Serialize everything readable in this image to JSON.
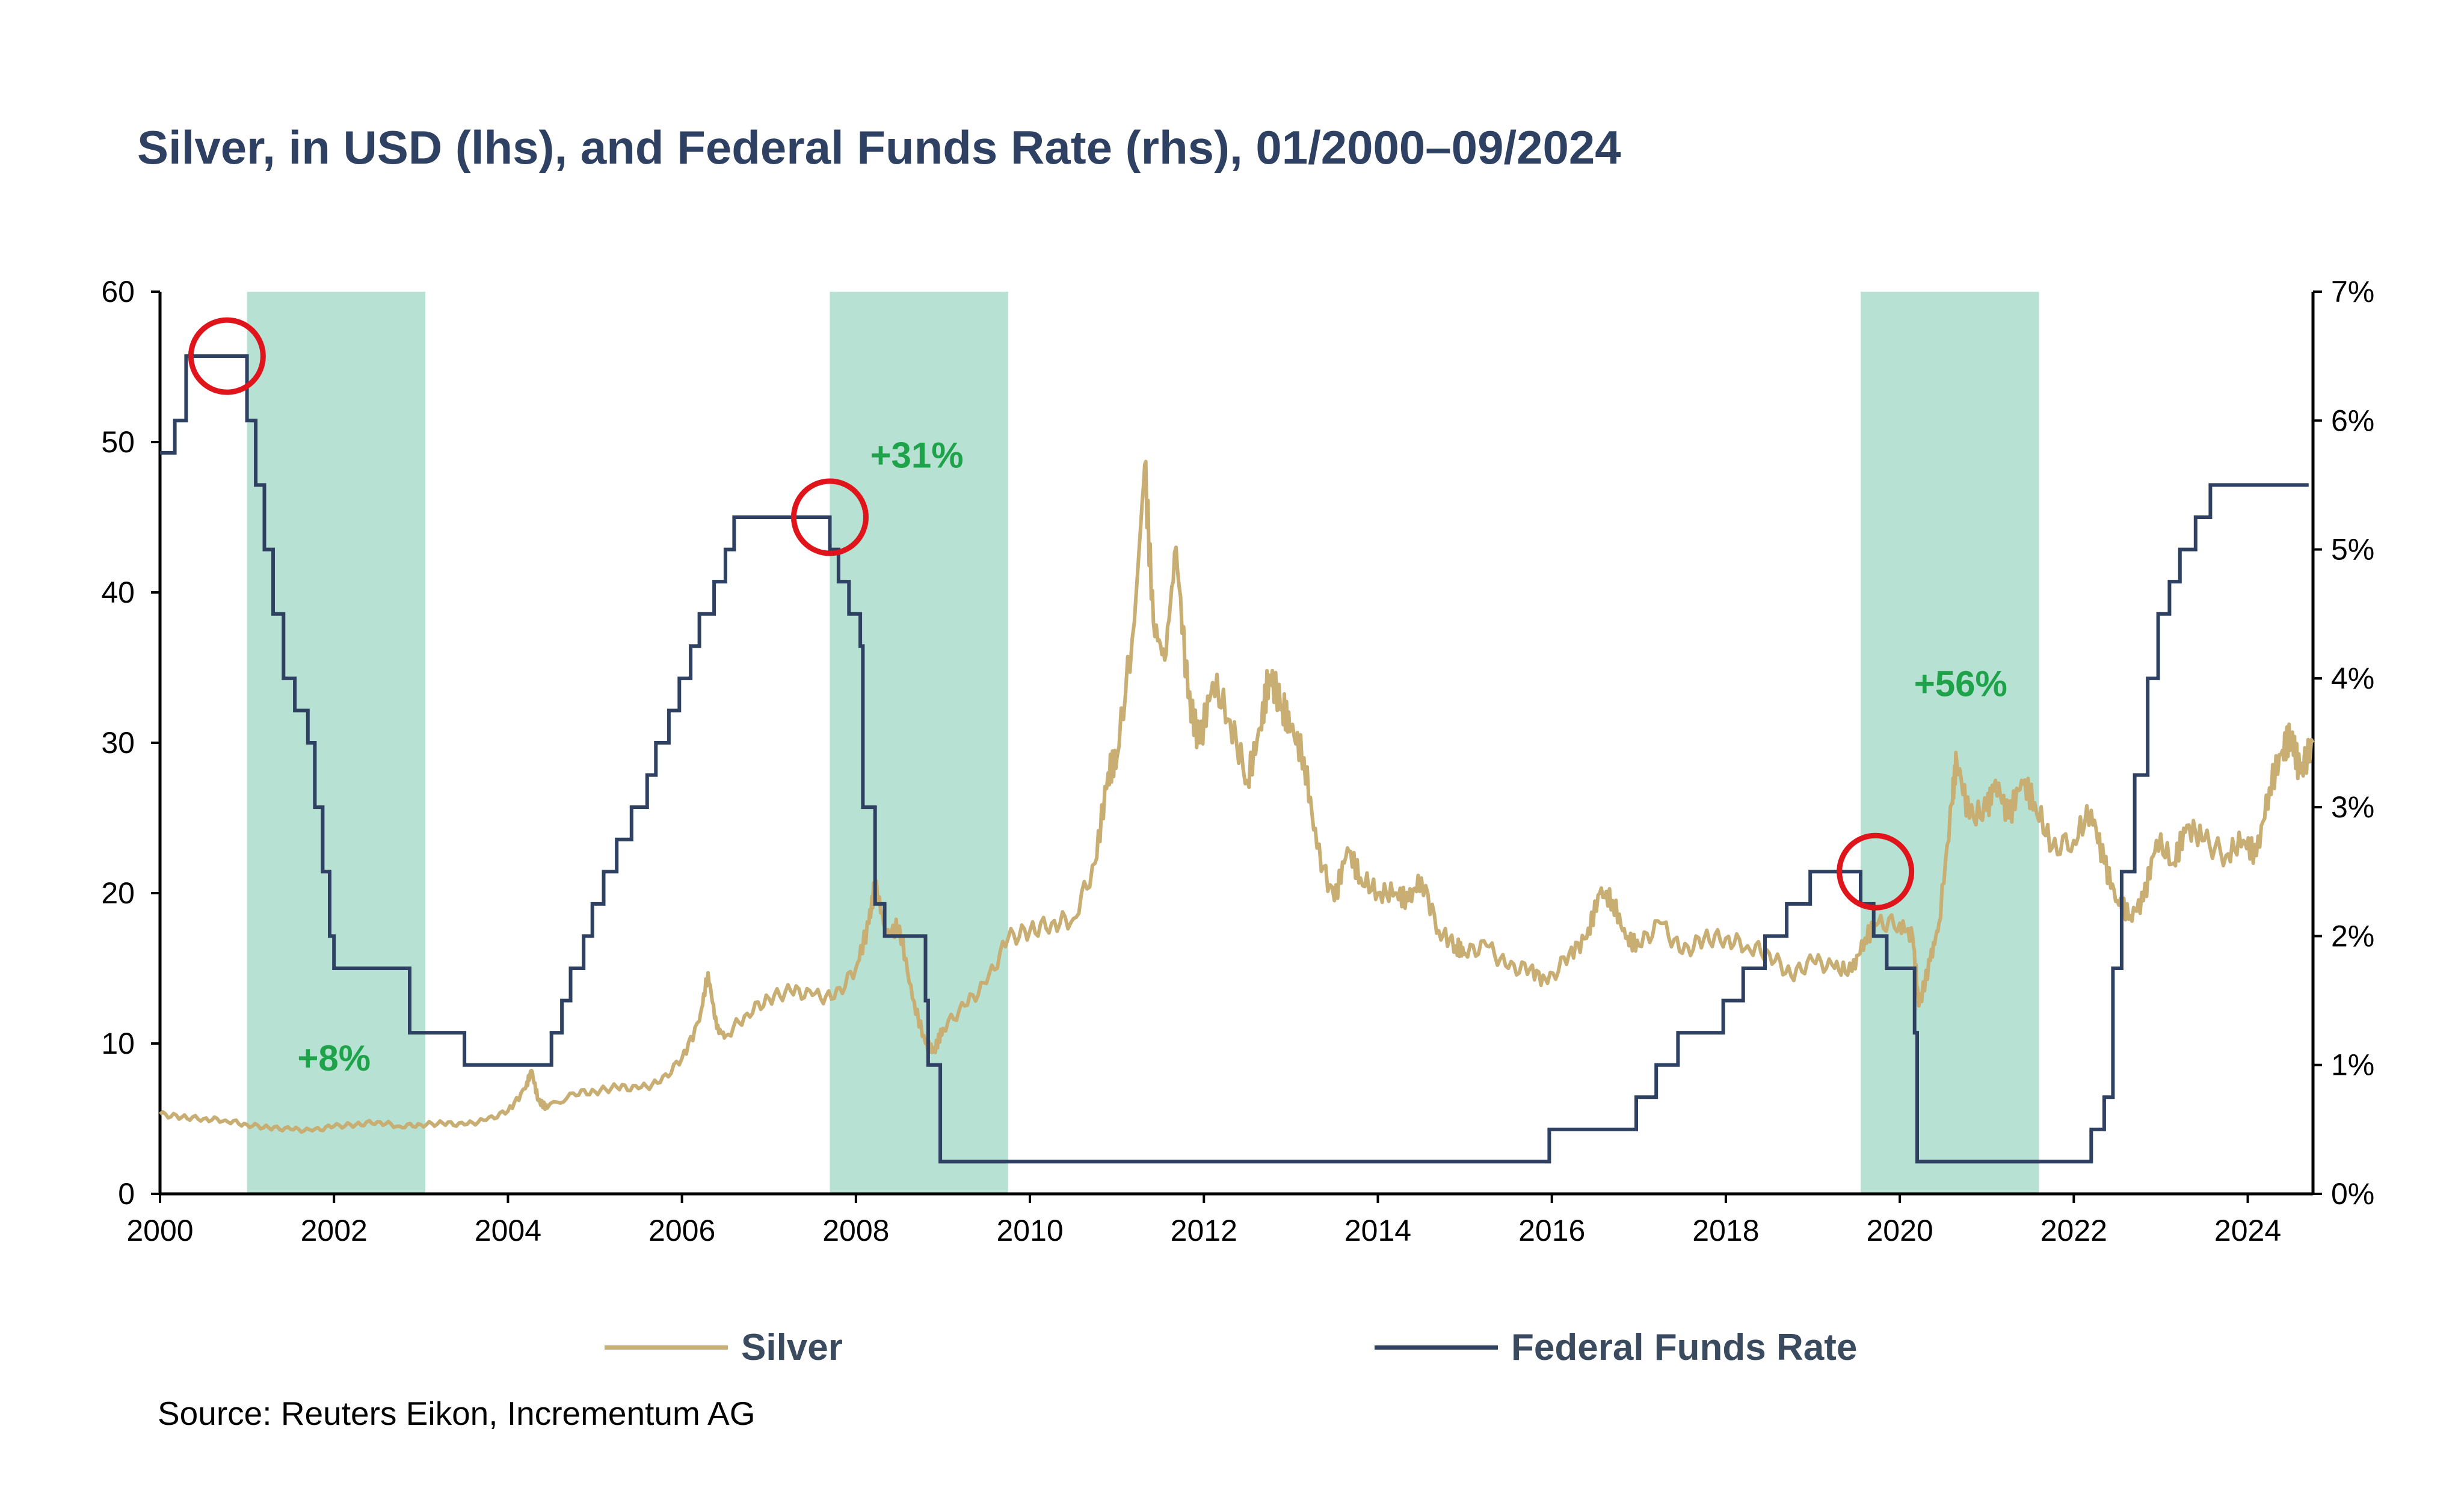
{
  "chart_data": {
    "type": "line",
    "title": "Silver, in USD (lhs), and Federal Funds Rate (rhs), 01/2000–09/2024",
    "xlabel": "",
    "ylabel_left": "",
    "ylabel_right": "",
    "xlim": [
      2000,
      2024.75
    ],
    "ylim_left": [
      0,
      60
    ],
    "ylim_right": [
      0,
      7
    ],
    "x_ticks": [
      "2000",
      "2002",
      "2004",
      "2006",
      "2008",
      "2010",
      "2012",
      "2014",
      "2016",
      "2018",
      "2020",
      "2022",
      "2024"
    ],
    "y_left_ticks": [
      "0",
      "10",
      "20",
      "30",
      "40",
      "50",
      "60"
    ],
    "y_right_ticks": [
      "0%",
      "1%",
      "2%",
      "3%",
      "4%",
      "5%",
      "6%",
      "7%"
    ],
    "grid": false,
    "legend_position": "bottom",
    "colors": {
      "silver": "#c8ae72",
      "fed_funds": "#2e4163",
      "shading": "#b7e1d3",
      "circle": "#e0141b",
      "annotation": "#1fa34a",
      "title": "#2e4163"
    },
    "series": [
      {
        "name": "Silver",
        "axis": "left",
        "points": [
          [
            2000.0,
            5.3
          ],
          [
            2000.25,
            5.1
          ],
          [
            2000.5,
            5.0
          ],
          [
            2000.75,
            4.9
          ],
          [
            2001.0,
            4.6
          ],
          [
            2001.25,
            4.4
          ],
          [
            2001.5,
            4.3
          ],
          [
            2001.75,
            4.2
          ],
          [
            2002.0,
            4.5
          ],
          [
            2002.25,
            4.6
          ],
          [
            2002.5,
            4.8
          ],
          [
            2002.75,
            4.5
          ],
          [
            2003.0,
            4.6
          ],
          [
            2003.25,
            4.7
          ],
          [
            2003.5,
            4.6
          ],
          [
            2003.75,
            4.9
          ],
          [
            2004.0,
            5.5
          ],
          [
            2004.2,
            7.0
          ],
          [
            2004.27,
            8.2
          ],
          [
            2004.35,
            6.2
          ],
          [
            2004.45,
            5.7
          ],
          [
            2004.75,
            6.7
          ],
          [
            2005.0,
            6.8
          ],
          [
            2005.25,
            7.1
          ],
          [
            2005.5,
            7.0
          ],
          [
            2005.75,
            7.4
          ],
          [
            2006.0,
            9.0
          ],
          [
            2006.2,
            11.5
          ],
          [
            2006.3,
            14.7
          ],
          [
            2006.4,
            11.0
          ],
          [
            2006.5,
            10.5
          ],
          [
            2006.75,
            12.0
          ],
          [
            2007.0,
            13.0
          ],
          [
            2007.25,
            13.5
          ],
          [
            2007.5,
            13.2
          ],
          [
            2007.75,
            13.0
          ],
          [
            2008.0,
            15.0
          ],
          [
            2008.15,
            18.0
          ],
          [
            2008.22,
            20.7
          ],
          [
            2008.35,
            17.2
          ],
          [
            2008.5,
            17.8
          ],
          [
            2008.65,
            13.0
          ],
          [
            2008.8,
            10.0
          ],
          [
            2008.9,
            9.5
          ],
          [
            2009.0,
            11.0
          ],
          [
            2009.25,
            12.5
          ],
          [
            2009.5,
            14.0
          ],
          [
            2009.75,
            17.0
          ],
          [
            2010.0,
            17.5
          ],
          [
            2010.25,
            18.0
          ],
          [
            2010.5,
            18.3
          ],
          [
            2010.75,
            22.0
          ],
          [
            2010.9,
            28.0
          ],
          [
            2011.0,
            29.0
          ],
          [
            2011.2,
            38.0
          ],
          [
            2011.32,
            48.5
          ],
          [
            2011.42,
            38.0
          ],
          [
            2011.55,
            35.5
          ],
          [
            2011.68,
            43.0
          ],
          [
            2011.82,
            33.0
          ],
          [
            2011.95,
            30.0
          ],
          [
            2012.1,
            34.0
          ],
          [
            2012.3,
            31.5
          ],
          [
            2012.5,
            27.5
          ],
          [
            2012.65,
            31.0
          ],
          [
            2012.75,
            34.5
          ],
          [
            2012.9,
            32.5
          ],
          [
            2013.0,
            31.0
          ],
          [
            2013.15,
            29.0
          ],
          [
            2013.3,
            23.0
          ],
          [
            2013.5,
            19.5
          ],
          [
            2013.65,
            23.0
          ],
          [
            2013.8,
            21.0
          ],
          [
            2014.0,
            20.0
          ],
          [
            2014.2,
            20.0
          ],
          [
            2014.35,
            19.5
          ],
          [
            2014.5,
            21.0
          ],
          [
            2014.7,
            17.5
          ],
          [
            2014.9,
            16.5
          ],
          [
            2015.0,
            16.0
          ],
          [
            2015.25,
            16.5
          ],
          [
            2015.5,
            15.0
          ],
          [
            2015.75,
            15.0
          ],
          [
            2015.95,
            14.0
          ],
          [
            2016.2,
            16.0
          ],
          [
            2016.4,
            17.0
          ],
          [
            2016.55,
            20.0
          ],
          [
            2016.7,
            19.5
          ],
          [
            2016.85,
            17.0
          ],
          [
            2017.0,
            16.5
          ],
          [
            2017.25,
            18.0
          ],
          [
            2017.5,
            16.0
          ],
          [
            2017.75,
            17.0
          ],
          [
            2018.0,
            17.0
          ],
          [
            2018.25,
            16.5
          ],
          [
            2018.5,
            16.0
          ],
          [
            2018.75,
            14.5
          ],
          [
            2019.0,
            15.5
          ],
          [
            2019.25,
            15.0
          ],
          [
            2019.45,
            14.8
          ],
          [
            2019.6,
            17.0
          ],
          [
            2019.75,
            18.0
          ],
          [
            2020.0,
            18.0
          ],
          [
            2020.15,
            17.0
          ],
          [
            2020.22,
            12.5
          ],
          [
            2020.35,
            15.5
          ],
          [
            2020.45,
            18.0
          ],
          [
            2020.6,
            26.0
          ],
          [
            2020.65,
            29.0
          ],
          [
            2020.8,
            25.0
          ],
          [
            2021.0,
            25.5
          ],
          [
            2021.1,
            27.5
          ],
          [
            2021.25,
            25.0
          ],
          [
            2021.4,
            27.5
          ],
          [
            2021.55,
            26.0
          ],
          [
            2021.75,
            23.0
          ],
          [
            2022.0,
            23.5
          ],
          [
            2022.2,
            25.5
          ],
          [
            2022.35,
            22.0
          ],
          [
            2022.5,
            19.5
          ],
          [
            2022.65,
            18.5
          ],
          [
            2022.8,
            19.5
          ],
          [
            2022.95,
            23.5
          ],
          [
            2023.15,
            22.0
          ],
          [
            2023.3,
            24.5
          ],
          [
            2023.5,
            23.5
          ],
          [
            2023.75,
            22.5
          ],
          [
            2023.95,
            23.5
          ],
          [
            2024.1,
            22.5
          ],
          [
            2024.25,
            27.0
          ],
          [
            2024.4,
            29.5
          ],
          [
            2024.5,
            30.5
          ],
          [
            2024.6,
            28.0
          ],
          [
            2024.75,
            30.0
          ]
        ]
      },
      {
        "name": "Federal Funds Rate",
        "axis": "right",
        "points": [
          [
            2000.0,
            5.75
          ],
          [
            2000.17,
            6.0
          ],
          [
            2000.3,
            6.5
          ],
          [
            2001.0,
            6.0
          ],
          [
            2001.1,
            5.5
          ],
          [
            2001.2,
            5.0
          ],
          [
            2001.3,
            4.5
          ],
          [
            2001.42,
            4.0
          ],
          [
            2001.55,
            3.75
          ],
          [
            2001.7,
            3.5
          ],
          [
            2001.78,
            3.0
          ],
          [
            2001.87,
            2.5
          ],
          [
            2001.95,
            2.0
          ],
          [
            2002.0,
            1.75
          ],
          [
            2002.87,
            1.25
          ],
          [
            2003.5,
            1.0
          ],
          [
            2004.5,
            1.25
          ],
          [
            2004.62,
            1.5
          ],
          [
            2004.72,
            1.75
          ],
          [
            2004.87,
            2.0
          ],
          [
            2004.97,
            2.25
          ],
          [
            2005.1,
            2.5
          ],
          [
            2005.25,
            2.75
          ],
          [
            2005.42,
            3.0
          ],
          [
            2005.6,
            3.25
          ],
          [
            2005.7,
            3.5
          ],
          [
            2005.85,
            3.75
          ],
          [
            2005.97,
            4.0
          ],
          [
            2006.1,
            4.25
          ],
          [
            2006.2,
            4.5
          ],
          [
            2006.37,
            4.75
          ],
          [
            2006.5,
            5.0
          ],
          [
            2006.6,
            5.25
          ],
          [
            2007.7,
            5.0
          ],
          [
            2007.8,
            4.75
          ],
          [
            2007.92,
            4.5
          ],
          [
            2008.05,
            4.25
          ],
          [
            2008.08,
            3.0
          ],
          [
            2008.22,
            2.25
          ],
          [
            2008.33,
            2.0
          ],
          [
            2008.8,
            1.5
          ],
          [
            2008.83,
            1.0
          ],
          [
            2008.97,
            0.25
          ],
          [
            2015.97,
            0.5
          ],
          [
            2016.97,
            0.75
          ],
          [
            2017.2,
            1.0
          ],
          [
            2017.45,
            1.25
          ],
          [
            2017.97,
            1.5
          ],
          [
            2018.2,
            1.75
          ],
          [
            2018.45,
            2.0
          ],
          [
            2018.7,
            2.25
          ],
          [
            2018.97,
            2.5
          ],
          [
            2019.55,
            2.25
          ],
          [
            2019.7,
            2.0
          ],
          [
            2019.85,
            1.75
          ],
          [
            2020.17,
            1.25
          ],
          [
            2020.2,
            0.25
          ],
          [
            2022.2,
            0.5
          ],
          [
            2022.35,
            0.75
          ],
          [
            2022.45,
            1.75
          ],
          [
            2022.55,
            2.5
          ],
          [
            2022.7,
            3.25
          ],
          [
            2022.85,
            4.0
          ],
          [
            2022.97,
            4.5
          ],
          [
            2023.1,
            4.75
          ],
          [
            2023.22,
            5.0
          ],
          [
            2023.4,
            5.25
          ],
          [
            2023.57,
            5.5
          ],
          [
            2024.7,
            5.5
          ]
        ]
      }
    ],
    "shaded_periods": [
      [
        2001.0,
        2003.05
      ],
      [
        2007.7,
        2009.75
      ],
      [
        2019.55,
        2021.6
      ]
    ],
    "circles": [
      {
        "x": 2000.77,
        "y_right": 6.5
      },
      {
        "x": 2007.7,
        "y_right": 5.25
      },
      {
        "x": 2019.72,
        "y_right": 2.5
      }
    ],
    "annotations": [
      {
        "text": "+8%",
        "x": 2002.0,
        "y_left": 8.2
      },
      {
        "text": "+31%",
        "x": 2008.7,
        "y_left": 48.3
      },
      {
        "text": "+56%",
        "x": 2020.7,
        "y_left": 33.1
      }
    ]
  },
  "legend": {
    "silver_label": "Silver",
    "fed_label": "Federal Funds Rate"
  },
  "source": "Source: Reuters Eikon, Incrementum AG"
}
